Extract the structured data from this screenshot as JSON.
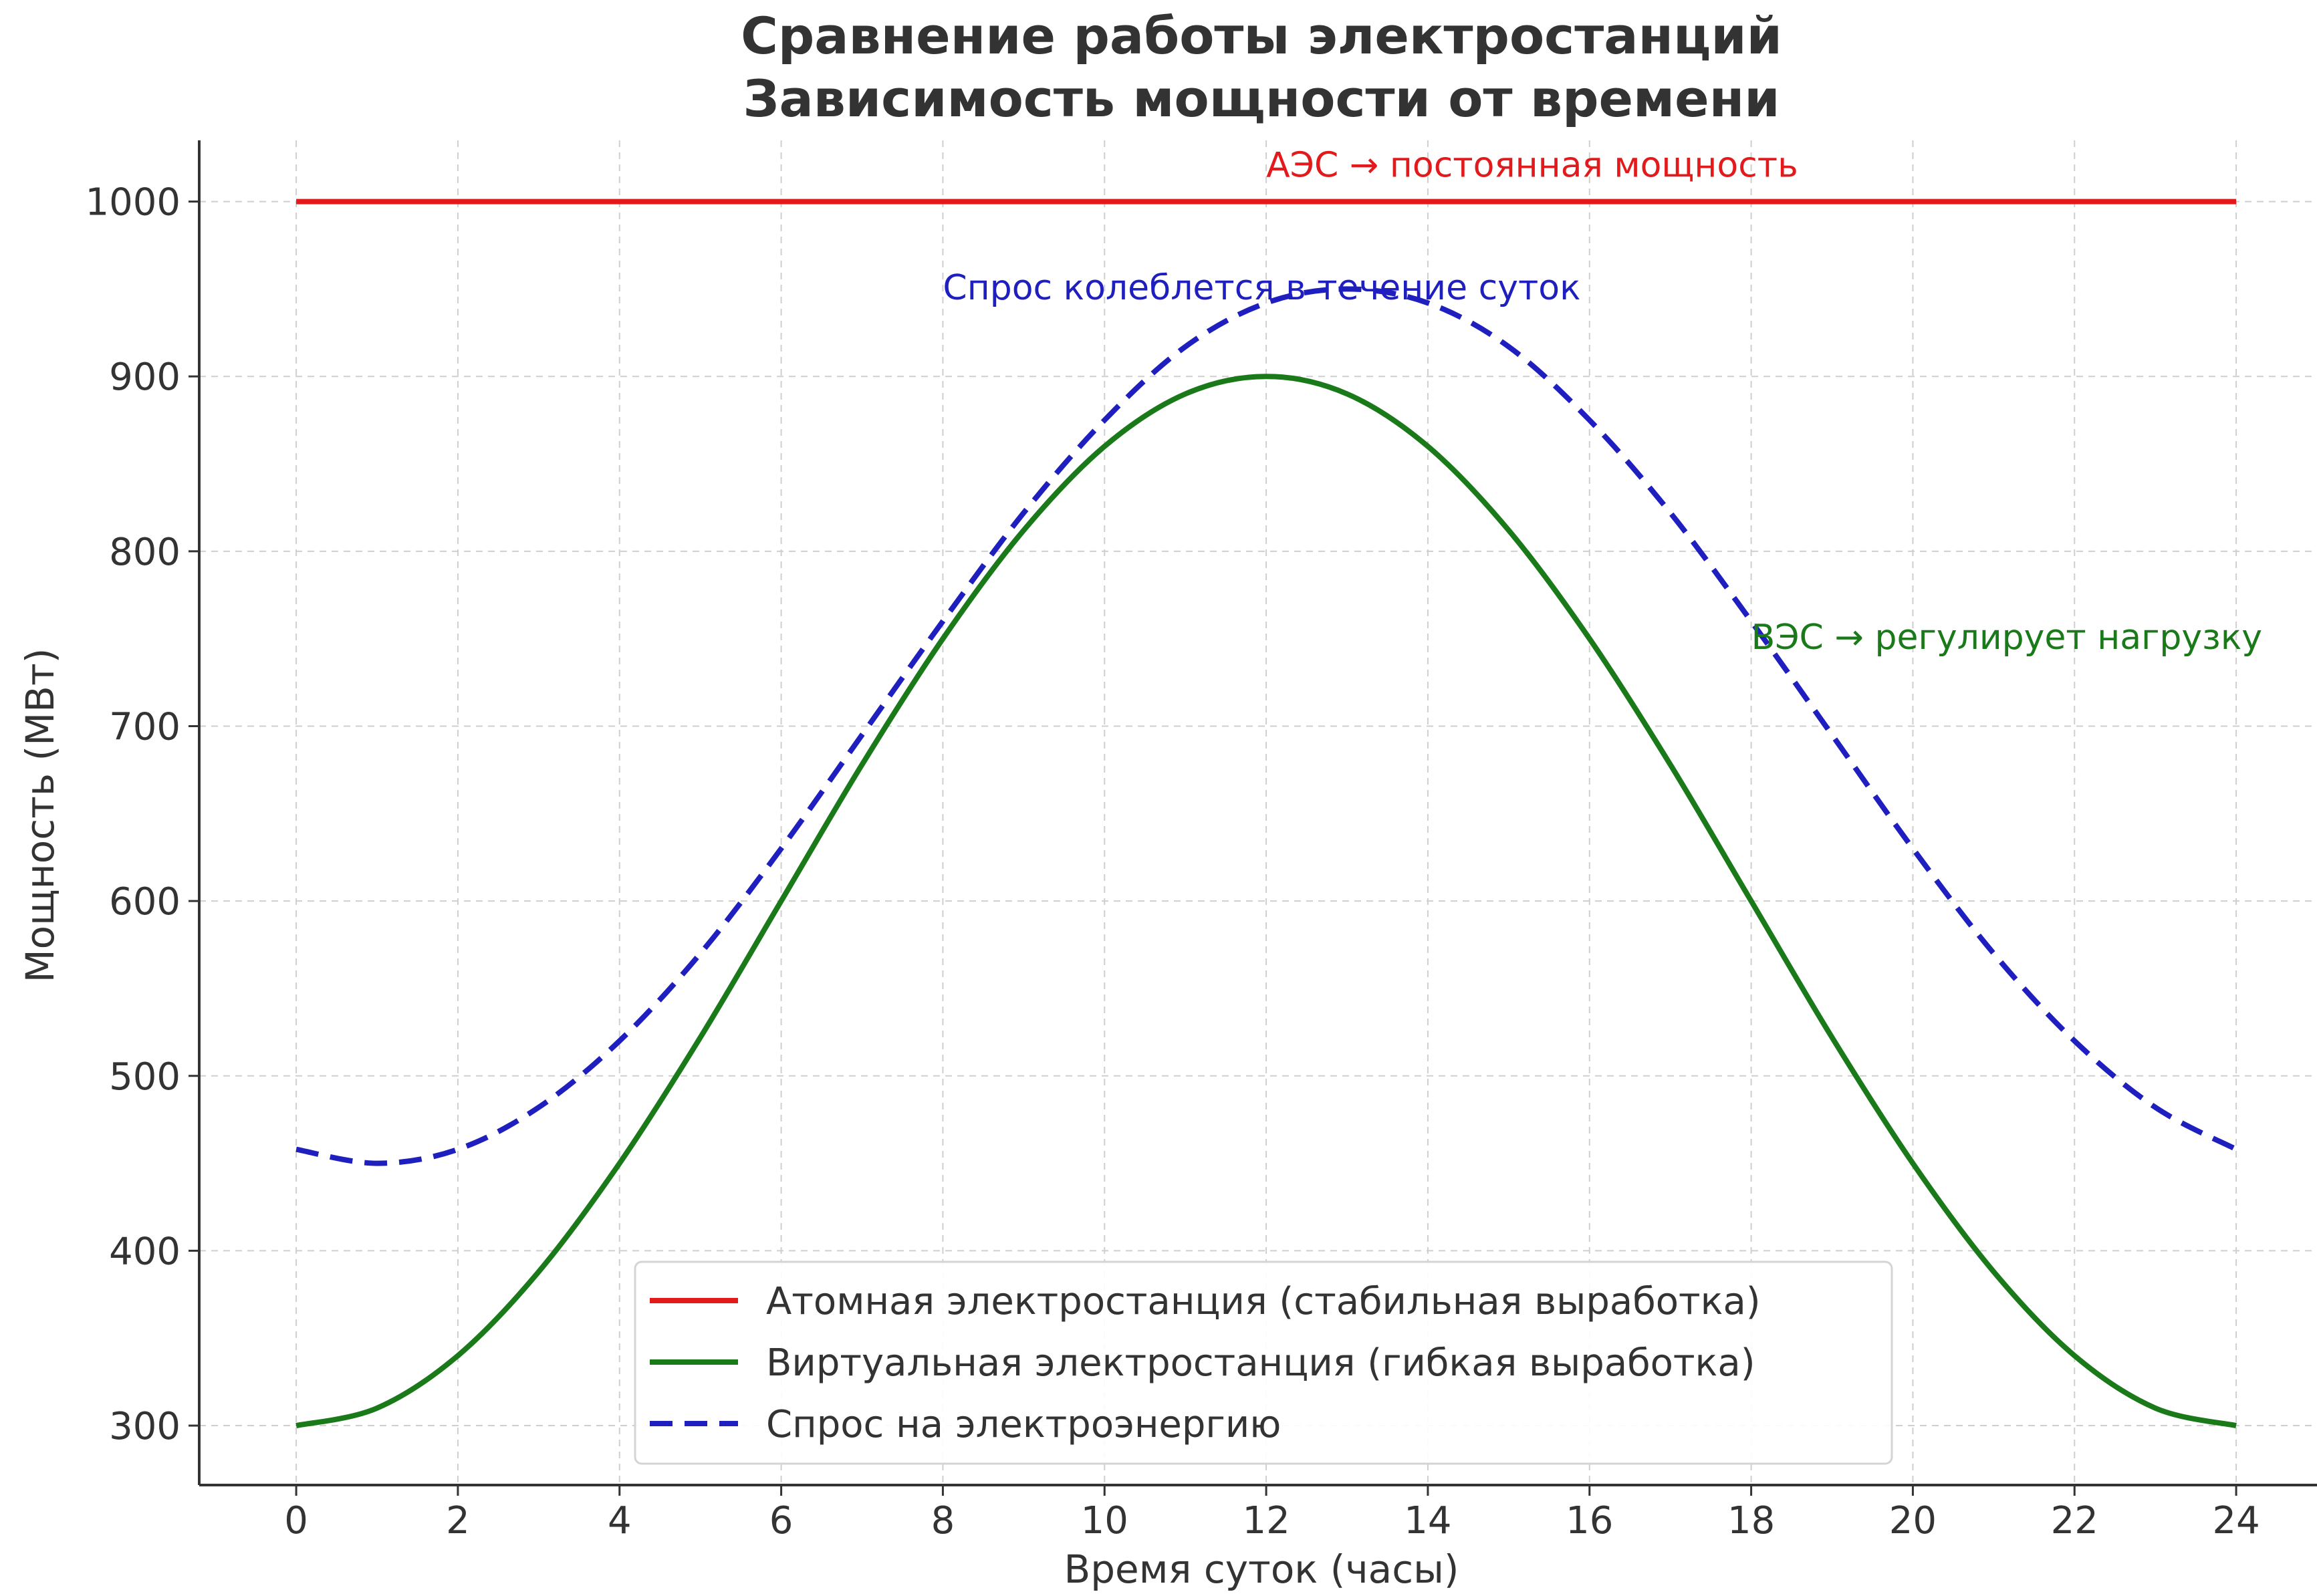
{
  "chart_data": {
    "type": "line",
    "title": [
      "Сравнение работы электростанций",
      "Зависимость мощности от времени"
    ],
    "xlabel": "Время суток (часы)",
    "ylabel": "Мощность (МВт)",
    "xlim": [
      -1.2,
      25
    ],
    "ylim": [
      266,
      1035
    ],
    "xticks": [
      0,
      2,
      4,
      6,
      8,
      10,
      12,
      14,
      16,
      18,
      20,
      22,
      24
    ],
    "yticks": [
      300,
      400,
      500,
      600,
      700,
      800,
      900,
      1000
    ],
    "grid": true,
    "legend_position": "lower center",
    "series": [
      {
        "name": "Атомная электростанция (стабильная выработка)",
        "color": "#e31a1c",
        "style": "solid",
        "x": [
          0,
          24
        ],
        "y": [
          1000,
          1000
        ]
      },
      {
        "name": "Виртуальная электростанция (гибкая выработка)",
        "color": "#1a7a1a",
        "style": "solid",
        "x": [
          0,
          1,
          2,
          3,
          4,
          5,
          6,
          7,
          8,
          9,
          10,
          11,
          12,
          13,
          14,
          15,
          16,
          17,
          18,
          19,
          20,
          21,
          22,
          23,
          24
        ],
        "y": [
          300,
          310,
          340,
          388,
          450,
          522,
          600,
          678,
          750,
          812,
          860,
          890,
          900,
          890,
          860,
          812,
          750,
          678,
          600,
          522,
          450,
          388,
          340,
          310,
          300
        ]
      },
      {
        "name": "Спрос на электроэнергию",
        "color": "#1f1fbf",
        "style": "dashed",
        "x": [
          0,
          1,
          2,
          3,
          4,
          5,
          6,
          7,
          8,
          9,
          10,
          11,
          12,
          13,
          14,
          15,
          16,
          17,
          18,
          19,
          20,
          21,
          22,
          23,
          24
        ],
        "y": [
          458,
          450,
          458,
          482,
          520,
          570,
          630,
          695,
          760,
          822,
          875,
          917,
          942,
          950,
          942,
          917,
          875,
          822,
          760,
          695,
          630,
          570,
          520,
          482,
          458
        ]
      }
    ],
    "annotations": [
      {
        "text": "АЭС → постоянная мощность",
        "x": 12,
        "y": 1021,
        "color": "#e31a1c"
      },
      {
        "text": "Спрос колеблется в течение суток",
        "x": 8,
        "y": 951,
        "color": "#1f1fbf"
      },
      {
        "text": "ВЭС → регулирует нагрузку",
        "x": 18,
        "y": 751,
        "color": "#1a7a1a"
      }
    ]
  }
}
